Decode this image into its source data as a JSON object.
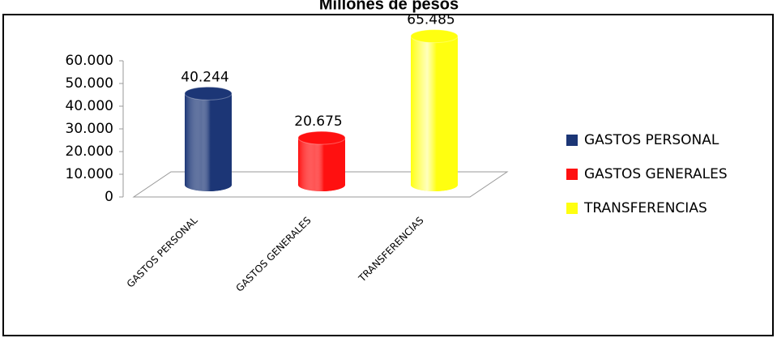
{
  "chart_data": {
    "type": "bar3d",
    "title": "Millones de pesos",
    "categories": [
      "GASTOS PERSONAL",
      "GASTOS GENERALES",
      "TRANSFERENCIAS"
    ],
    "values": [
      40244,
      20675,
      65485
    ],
    "value_labels": [
      "40.244",
      "20.675",
      "65.485"
    ],
    "colors": [
      "#1c3676",
      "#ff1010",
      "#ffff10"
    ],
    "ylim": [
      0,
      60000
    ],
    "yticks": [
      {
        "value": 0,
        "label": "0"
      },
      {
        "value": 10000,
        "label": "10.000"
      },
      {
        "value": 20000,
        "label": "20.000"
      },
      {
        "value": 30000,
        "label": "30.000"
      },
      {
        "value": 40000,
        "label": "40.000"
      },
      {
        "value": 50000,
        "label": "50.000"
      },
      {
        "value": 60000,
        "label": "60.000"
      }
    ],
    "legend": "right"
  }
}
